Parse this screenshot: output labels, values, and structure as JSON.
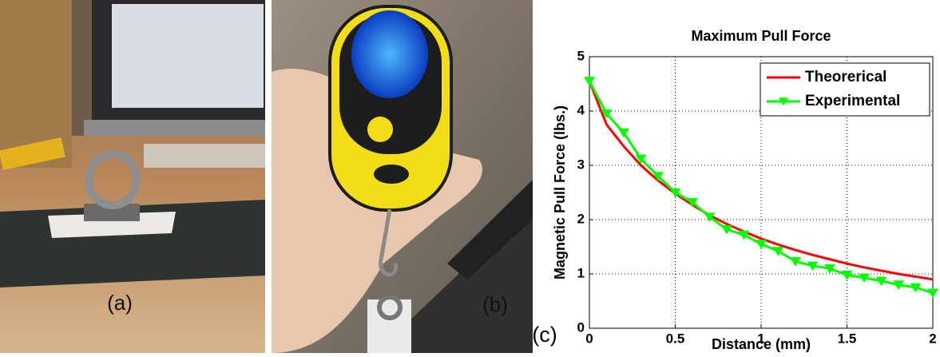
{
  "panels": [
    {
      "label": "(a)"
    },
    {
      "label": "(b)"
    },
    {
      "label": "(c)"
    }
  ],
  "chart_data": {
    "type": "line",
    "title": "Maximum Pull Force",
    "x_label": "Distance (mm)",
    "y_label": "Magnetic Pull Force (lbs.)",
    "x": [
      0,
      0.1,
      0.2,
      0.3,
      0.4,
      0.5,
      0.6,
      0.7,
      0.8,
      0.9,
      1.0,
      1.1,
      1.2,
      1.3,
      1.4,
      1.5,
      1.6,
      1.7,
      1.8,
      1.9,
      2.0
    ],
    "series": [
      {
        "name": "Theorerical",
        "color": "#ff0000",
        "marker": "none",
        "values": [
          4.55,
          3.75,
          3.35,
          3.0,
          2.72,
          2.48,
          2.27,
          2.08,
          1.92,
          1.78,
          1.65,
          1.54,
          1.44,
          1.35,
          1.27,
          1.19,
          1.12,
          1.06,
          1.0,
          0.95,
          0.9
        ]
      },
      {
        "name": "Experimental",
        "color": "#00ff00",
        "marker": "triangle-down",
        "values": [
          4.55,
          3.95,
          3.6,
          3.12,
          2.8,
          2.5,
          2.32,
          2.05,
          1.82,
          1.72,
          1.55,
          1.42,
          1.23,
          1.15,
          1.1,
          0.98,
          0.93,
          0.87,
          0.8,
          0.75,
          0.65
        ]
      }
    ],
    "xlim": [
      0,
      2
    ],
    "ylim": [
      0,
      5
    ],
    "xticks": [
      0,
      0.5,
      1,
      1.5,
      2
    ],
    "yticks": [
      0,
      1,
      2,
      3,
      4,
      5
    ],
    "grid": true,
    "legend": "upper right"
  }
}
